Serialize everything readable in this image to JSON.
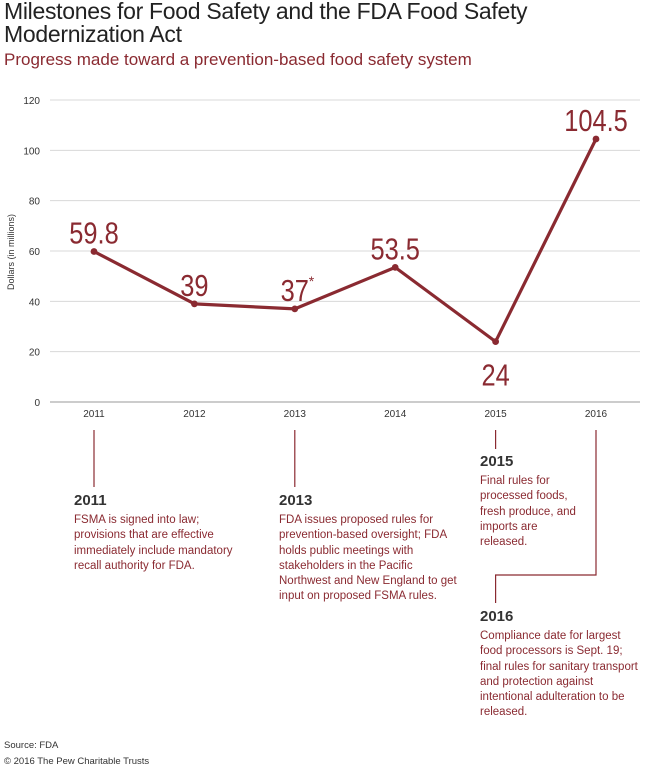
{
  "header": {
    "title": "Milestones for Food Safety and the FDA Food Safety Modernization Act",
    "subtitle": "Progress made toward a prevention-based food safety system"
  },
  "chart_data": {
    "type": "line",
    "title": "Milestones for Food Safety and the FDA Food Safety Modernization Act",
    "subtitle": "Progress made toward a prevention-based food safety system",
    "ylabel": "Dollars (in millions)",
    "xlabel": "",
    "categories": [
      "2011",
      "2012",
      "2013",
      "2014",
      "2015",
      "2016"
    ],
    "values": [
      59.8,
      39,
      37,
      53.5,
      24,
      104.5
    ],
    "data_labels": [
      "59.8",
      "39",
      "37",
      "53.5",
      "24",
      "104.5"
    ],
    "label_marks": [
      "",
      "",
      "*",
      "",
      "",
      ""
    ],
    "yticks": [
      "0",
      "20",
      "40",
      "60",
      "80",
      "100",
      "120"
    ],
    "ylim": [
      0,
      120
    ],
    "grid": true,
    "line_color": "#8a2a31"
  },
  "annotations": [
    {
      "year": "2011",
      "text": "FSMA is signed into law; provisions that are effective immediately include mandatory recall authority for FDA."
    },
    {
      "year": "2013",
      "text": "FDA issues proposed rules for prevention-based oversight; FDA holds public meetings with stakeholders in the Pacific Northwest and New England to get input on proposed FSMA rules."
    },
    {
      "year": "2015",
      "text": "Final rules for processed foods, fresh produce, and imports are released."
    },
    {
      "year": "2016",
      "text": "Compliance date for largest food processors is Sept. 19; final rules for sanitary transport and protection against intentional adulteration to be released."
    }
  ],
  "footer": {
    "source": "Source: FDA",
    "copyright": "© 2016 The Pew Charitable Trusts"
  }
}
